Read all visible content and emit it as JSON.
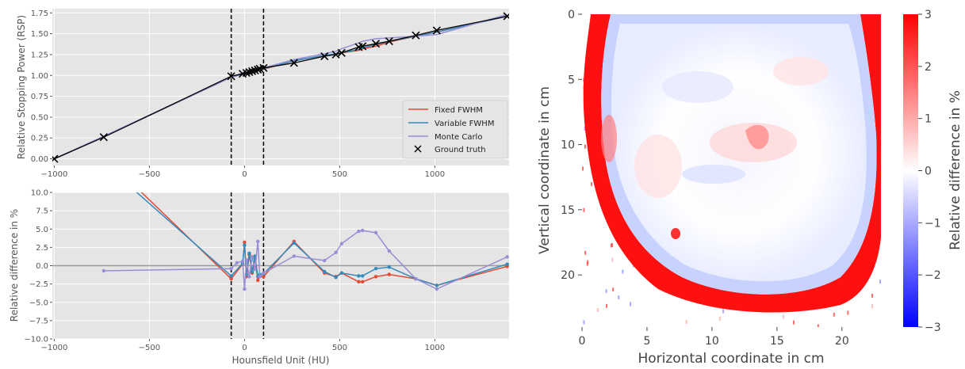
{
  "chart_data": [
    {
      "type": "line",
      "ylabel": "Relative Stopping Power (RSP)",
      "xlim": [
        -1010,
        1390
      ],
      "ylim": [
        -0.08,
        1.8
      ],
      "x_ticks": [
        -1000,
        -500,
        0,
        500,
        1000
      ],
      "x_tick_labels": [
        "−1000",
        "−500",
        "0",
        "500",
        "1000"
      ],
      "y_ticks": [
        0.0,
        0.25,
        0.5,
        0.75,
        1.0,
        1.25,
        1.5,
        1.75
      ],
      "y_tick_labels": [
        "0.00",
        "0.25",
        "0.50",
        "0.75",
        "1.00",
        "1.25",
        "1.50",
        "1.75"
      ],
      "vlines": [
        -70,
        100
      ],
      "grid": true,
      "legend_position": "lower-right",
      "series": [
        {
          "name": "Fixed FWHM",
          "color": "#E24A33",
          "x": [
            -1000,
            -740,
            -70,
            -10,
            10,
            25,
            40,
            55,
            70,
            80,
            100,
            260,
            420,
            480,
            510,
            600,
            620,
            690,
            760,
            900,
            1010,
            1380
          ],
          "y": [
            0.0,
            0.265,
            0.98,
            1.015,
            1.025,
            1.035,
            1.04,
            1.05,
            1.06,
            1.065,
            1.075,
            1.175,
            1.24,
            1.255,
            1.27,
            1.3,
            1.32,
            1.35,
            1.4,
            1.47,
            1.52,
            1.71
          ]
        },
        {
          "name": "Variable FWHM",
          "color": "#348ABD",
          "x": [
            -1000,
            -740,
            -70,
            -10,
            10,
            25,
            40,
            55,
            70,
            80,
            100,
            260,
            420,
            480,
            510,
            600,
            620,
            690,
            760,
            900,
            1010,
            1380
          ],
          "y": [
            0.0,
            0.265,
            0.98,
            1.015,
            1.025,
            1.035,
            1.045,
            1.05,
            1.06,
            1.07,
            1.08,
            1.175,
            1.24,
            1.26,
            1.275,
            1.31,
            1.33,
            1.37,
            1.41,
            1.47,
            1.52,
            1.71
          ]
        },
        {
          "name": "Monte Carlo",
          "color": "#988ED5",
          "x": [
            -1000,
            -740,
            -70,
            -10,
            10,
            25,
            40,
            55,
            70,
            80,
            100,
            260,
            420,
            480,
            510,
            600,
            620,
            690,
            760,
            900,
            1010,
            1380
          ],
          "y": [
            0.0,
            0.27,
            0.98,
            1.03,
            1.04,
            1.05,
            1.06,
            1.07,
            1.08,
            1.09,
            1.09,
            1.19,
            1.26,
            1.29,
            1.32,
            1.39,
            1.41,
            1.44,
            1.45,
            1.47,
            1.49,
            1.73
          ]
        },
        {
          "name": "Ground truth",
          "color": "#000000",
          "marker": "x",
          "x": [
            -1000,
            -740,
            -70,
            -10,
            10,
            25,
            40,
            55,
            70,
            80,
            100,
            260,
            420,
            480,
            510,
            600,
            620,
            690,
            760,
            900,
            1010,
            1380
          ],
          "y": [
            0.0,
            0.26,
            0.99,
            1.02,
            1.03,
            1.04,
            1.05,
            1.06,
            1.07,
            1.08,
            1.09,
            1.15,
            1.23,
            1.25,
            1.27,
            1.34,
            1.35,
            1.38,
            1.41,
            1.48,
            1.54,
            1.71
          ]
        }
      ]
    },
    {
      "type": "line",
      "xlabel": "Hounsfield Unit (HU)",
      "ylabel": "Relative difference in %",
      "xlim": [
        -1010,
        1390
      ],
      "ylim": [
        -10.0,
        10.0
      ],
      "x_ticks": [
        -1000,
        -500,
        0,
        500,
        1000
      ],
      "x_tick_labels": [
        "−1000",
        "−500",
        "0",
        "500",
        "1000"
      ],
      "y_ticks": [
        -10.0,
        -7.5,
        -5.0,
        -2.5,
        0.0,
        2.5,
        5.0,
        7.5,
        10.0
      ],
      "y_tick_labels": [
        "−10.0",
        "−7.5",
        "−5.0",
        "−2.5",
        "0.0",
        "2.5",
        "5.0",
        "7.5",
        "10.0"
      ],
      "vlines": [
        -70,
        100
      ],
      "hline": 0,
      "grid": true,
      "series": [
        {
          "name": "Fixed FWHM",
          "color": "#E24A33",
          "x": [
            -740,
            -70,
            -10,
            0,
            10,
            25,
            40,
            55,
            70,
            80,
            100,
            260,
            420,
            480,
            510,
            600,
            620,
            690,
            760,
            900,
            1010,
            1380
          ],
          "y": [
            15.0,
            -1.8,
            0.2,
            3.2,
            -1.5,
            1.5,
            -1.0,
            1.0,
            -2.0,
            -1.5,
            -1.5,
            3.3,
            -1.0,
            -1.5,
            -1.0,
            -2.2,
            -2.2,
            -1.5,
            -1.2,
            -1.8,
            -2.7,
            -0.1
          ]
        },
        {
          "name": "Variable FWHM",
          "color": "#348ABD",
          "x": [
            -740,
            -70,
            -10,
            0,
            10,
            25,
            40,
            55,
            70,
            80,
            100,
            260,
            420,
            480,
            510,
            600,
            620,
            690,
            760,
            900,
            1010,
            1380
          ],
          "y": [
            14.0,
            -1.4,
            0.3,
            2.8,
            -1.2,
            1.7,
            -0.8,
            1.3,
            -1.5,
            -1.2,
            -1.1,
            3.1,
            -0.8,
            -1.6,
            -1.0,
            -1.4,
            -1.4,
            -0.4,
            -0.2,
            -1.8,
            -2.7,
            0.2
          ]
        },
        {
          "name": "Monte Carlo",
          "color": "#988ED5",
          "x": [
            -740,
            -70,
            -40,
            -10,
            0,
            10,
            25,
            40,
            55,
            70,
            80,
            100,
            260,
            420,
            480,
            510,
            600,
            620,
            690,
            760,
            900,
            1010,
            1380
          ],
          "y": [
            -0.7,
            -0.4,
            0.4,
            0.6,
            -3.2,
            0.8,
            -1.5,
            1.2,
            -0.5,
            3.3,
            -1.5,
            -1.0,
            1.3,
            0.7,
            1.8,
            3.0,
            4.7,
            4.8,
            4.5,
            2.0,
            -1.8,
            -3.2,
            1.2
          ]
        }
      ]
    },
    {
      "type": "heatmap",
      "xlabel": "Horizontal coordinate in cm",
      "ylabel": "Vertical coordinate in cm",
      "xlim": [
        0,
        23
      ],
      "ylim": [
        24,
        0
      ],
      "x_ticks": [
        0,
        5,
        10,
        15,
        20
      ],
      "x_tick_labels": [
        "0",
        "5",
        "10",
        "15",
        "20"
      ],
      "y_ticks": [
        0,
        5,
        10,
        15,
        20
      ],
      "y_tick_labels": [
        "0",
        "5",
        "10",
        "15",
        "20"
      ],
      "colorbar": {
        "label": "Relative difference in %",
        "range": [
          -3,
          3
        ],
        "ticks": [
          -3,
          -2,
          -1,
          0,
          1,
          2,
          3
        ],
        "tick_labels": [
          "−3",
          "−2",
          "−1",
          "0",
          "1",
          "2",
          "3"
        ],
        "colormap": "bwr",
        "colors": [
          "#0000FF",
          "#FFFFFF",
          "#FF0000"
        ]
      }
    }
  ]
}
